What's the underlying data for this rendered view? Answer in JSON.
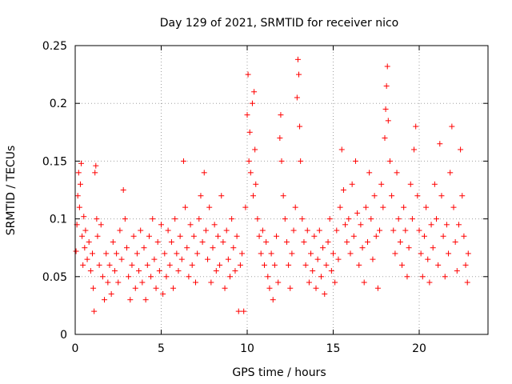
{
  "chart_data": {
    "type": "scatter",
    "title": "Day 129 of 2021, SRMTID for receiver nico",
    "xlabel": "GPS time / hours",
    "ylabel": "SRMTID / TECUs",
    "xlim": [
      0,
      24
    ],
    "ylim": [
      0,
      0.25
    ],
    "xticks": [
      0,
      5,
      10,
      15,
      20
    ],
    "xtick_labels": [
      "0",
      "5",
      "10",
      "15",
      "20"
    ],
    "yticks": [
      0,
      0.05,
      0.1,
      0.15,
      0.2,
      0.25
    ],
    "ytick_labels": [
      "0",
      "0.05",
      "0.1",
      "0.15",
      "0.2",
      "0.25"
    ],
    "grid": true,
    "marker": "plus",
    "color": "#ff0000",
    "series": [
      {
        "name": "SRMTID",
        "points": [
          [
            0.05,
            0.072
          ],
          [
            0.1,
            0.095
          ],
          [
            0.15,
            0.12
          ],
          [
            0.2,
            0.14
          ],
          [
            0.25,
            0.11
          ],
          [
            0.3,
            0.13
          ],
          [
            0.35,
            0.148
          ],
          [
            0.4,
            0.085
          ],
          [
            0.45,
            0.06
          ],
          [
            0.5,
            0.102
          ],
          [
            0.55,
            0.075
          ],
          [
            0.6,
            0.09
          ],
          [
            0.7,
            0.065
          ],
          [
            0.8,
            0.08
          ],
          [
            0.9,
            0.055
          ],
          [
            1.0,
            0.07
          ],
          [
            1.05,
            0.04
          ],
          [
            1.1,
            0.02
          ],
          [
            1.15,
            0.14
          ],
          [
            1.2,
            0.146
          ],
          [
            1.25,
            0.1
          ],
          [
            1.3,
            0.085
          ],
          [
            1.4,
            0.06
          ],
          [
            1.5,
            0.095
          ],
          [
            1.6,
            0.05
          ],
          [
            1.7,
            0.03
          ],
          [
            1.8,
            0.07
          ],
          [
            1.9,
            0.045
          ],
          [
            2.0,
            0.06
          ],
          [
            2.1,
            0.035
          ],
          [
            2.2,
            0.08
          ],
          [
            2.3,
            0.055
          ],
          [
            2.4,
            0.07
          ],
          [
            2.5,
            0.045
          ],
          [
            2.6,
            0.09
          ],
          [
            2.7,
            0.065
          ],
          [
            2.8,
            0.125
          ],
          [
            2.9,
            0.1
          ],
          [
            3.0,
            0.075
          ],
          [
            3.1,
            0.05
          ],
          [
            3.2,
            0.03
          ],
          [
            3.3,
            0.06
          ],
          [
            3.4,
            0.085
          ],
          [
            3.5,
            0.04
          ],
          [
            3.6,
            0.07
          ],
          [
            3.7,
            0.055
          ],
          [
            3.8,
            0.09
          ],
          [
            3.9,
            0.045
          ],
          [
            4.0,
            0.075
          ],
          [
            4.1,
            0.03
          ],
          [
            4.2,
            0.06
          ],
          [
            4.3,
            0.085
          ],
          [
            4.4,
            0.05
          ],
          [
            4.5,
            0.1
          ],
          [
            4.6,
            0.065
          ],
          [
            4.7,
            0.04
          ],
          [
            4.8,
            0.08
          ],
          [
            4.9,
            0.055
          ],
          [
            5.0,
            0.095
          ],
          [
            5.1,
            0.035
          ],
          [
            5.2,
            0.07
          ],
          [
            5.3,
            0.05
          ],
          [
            5.4,
            0.09
          ],
          [
            5.5,
            0.06
          ],
          [
            5.6,
            0.08
          ],
          [
            5.7,
            0.04
          ],
          [
            5.8,
            0.1
          ],
          [
            5.9,
            0.07
          ],
          [
            6.0,
            0.055
          ],
          [
            6.1,
            0.085
          ],
          [
            6.2,
            0.065
          ],
          [
            6.3,
            0.15
          ],
          [
            6.4,
            0.11
          ],
          [
            6.5,
            0.075
          ],
          [
            6.6,
            0.05
          ],
          [
            6.7,
            0.095
          ],
          [
            6.8,
            0.06
          ],
          [
            6.9,
            0.085
          ],
          [
            7.0,
            0.045
          ],
          [
            7.1,
            0.07
          ],
          [
            7.2,
            0.1
          ],
          [
            7.3,
            0.12
          ],
          [
            7.4,
            0.08
          ],
          [
            7.5,
            0.14
          ],
          [
            7.6,
            0.09
          ],
          [
            7.7,
            0.065
          ],
          [
            7.8,
            0.11
          ],
          [
            7.9,
            0.045
          ],
          [
            8.0,
            0.075
          ],
          [
            8.1,
            0.095
          ],
          [
            8.2,
            0.055
          ],
          [
            8.3,
            0.085
          ],
          [
            8.4,
            0.06
          ],
          [
            8.5,
            0.12
          ],
          [
            8.6,
            0.08
          ],
          [
            8.7,
            0.04
          ],
          [
            8.8,
            0.09
          ],
          [
            8.9,
            0.065
          ],
          [
            9.0,
            0.05
          ],
          [
            9.1,
            0.1
          ],
          [
            9.2,
            0.075
          ],
          [
            9.3,
            0.055
          ],
          [
            9.4,
            0.085
          ],
          [
            9.5,
            0.02
          ],
          [
            9.6,
            0.06
          ],
          [
            9.7,
            0.07
          ],
          [
            9.8,
            0.02
          ],
          [
            9.9,
            0.11
          ],
          [
            10.0,
            0.19
          ],
          [
            10.05,
            0.225
          ],
          [
            10.1,
            0.15
          ],
          [
            10.15,
            0.175
          ],
          [
            10.2,
            0.14
          ],
          [
            10.3,
            0.2
          ],
          [
            10.35,
            0.12
          ],
          [
            10.4,
            0.21
          ],
          [
            10.45,
            0.16
          ],
          [
            10.5,
            0.13
          ],
          [
            10.6,
            0.1
          ],
          [
            10.7,
            0.085
          ],
          [
            10.8,
            0.07
          ],
          [
            10.9,
            0.09
          ],
          [
            11.0,
            0.06
          ],
          [
            11.1,
            0.08
          ],
          [
            11.2,
            0.05
          ],
          [
            11.3,
            0.04
          ],
          [
            11.4,
            0.07
          ],
          [
            11.5,
            0.03
          ],
          [
            11.6,
            0.06
          ],
          [
            11.7,
            0.085
          ],
          [
            11.8,
            0.045
          ],
          [
            11.9,
            0.17
          ],
          [
            11.95,
            0.19
          ],
          [
            12.0,
            0.15
          ],
          [
            12.1,
            0.12
          ],
          [
            12.2,
            0.1
          ],
          [
            12.3,
            0.08
          ],
          [
            12.4,
            0.06
          ],
          [
            12.5,
            0.04
          ],
          [
            12.6,
            0.07
          ],
          [
            12.7,
            0.09
          ],
          [
            12.8,
            0.11
          ],
          [
            12.9,
            0.205
          ],
          [
            12.95,
            0.238
          ],
          [
            13.0,
            0.225
          ],
          [
            13.05,
            0.18
          ],
          [
            13.1,
            0.15
          ],
          [
            13.2,
            0.1
          ],
          [
            13.3,
            0.08
          ],
          [
            13.4,
            0.06
          ],
          [
            13.5,
            0.09
          ],
          [
            13.6,
            0.045
          ],
          [
            13.7,
            0.07
          ],
          [
            13.8,
            0.055
          ],
          [
            13.9,
            0.085
          ],
          [
            14.0,
            0.04
          ],
          [
            14.1,
            0.065
          ],
          [
            14.2,
            0.09
          ],
          [
            14.3,
            0.05
          ],
          [
            14.4,
            0.075
          ],
          [
            14.5,
            0.035
          ],
          [
            14.6,
            0.06
          ],
          [
            14.7,
            0.08
          ],
          [
            14.8,
            0.1
          ],
          [
            14.9,
            0.055
          ],
          [
            15.0,
            0.07
          ],
          [
            15.1,
            0.045
          ],
          [
            15.2,
            0.09
          ],
          [
            15.3,
            0.065
          ],
          [
            15.4,
            0.11
          ],
          [
            15.5,
            0.16
          ],
          [
            15.6,
            0.125
          ],
          [
            15.7,
            0.095
          ],
          [
            15.8,
            0.08
          ],
          [
            15.9,
            0.1
          ],
          [
            16.0,
            0.07
          ],
          [
            16.1,
            0.13
          ],
          [
            16.2,
            0.085
          ],
          [
            16.3,
            0.15
          ],
          [
            16.4,
            0.105
          ],
          [
            16.5,
            0.06
          ],
          [
            16.6,
            0.095
          ],
          [
            16.7,
            0.075
          ],
          [
            16.8,
            0.045
          ],
          [
            16.9,
            0.11
          ],
          [
            17.0,
            0.08
          ],
          [
            17.1,
            0.14
          ],
          [
            17.2,
            0.1
          ],
          [
            17.3,
            0.065
          ],
          [
            17.4,
            0.12
          ],
          [
            17.5,
            0.085
          ],
          [
            17.6,
            0.04
          ],
          [
            17.7,
            0.09
          ],
          [
            17.8,
            0.13
          ],
          [
            17.9,
            0.11
          ],
          [
            18.0,
            0.17
          ],
          [
            18.05,
            0.195
          ],
          [
            18.1,
            0.215
          ],
          [
            18.15,
            0.232
          ],
          [
            18.2,
            0.185
          ],
          [
            18.3,
            0.15
          ],
          [
            18.4,
            0.12
          ],
          [
            18.5,
            0.09
          ],
          [
            18.6,
            0.07
          ],
          [
            18.7,
            0.14
          ],
          [
            18.8,
            0.1
          ],
          [
            18.9,
            0.08
          ],
          [
            19.0,
            0.06
          ],
          [
            19.1,
            0.11
          ],
          [
            19.2,
            0.09
          ],
          [
            19.3,
            0.05
          ],
          [
            19.4,
            0.075
          ],
          [
            19.5,
            0.13
          ],
          [
            19.6,
            0.1
          ],
          [
            19.7,
            0.16
          ],
          [
            19.8,
            0.18
          ],
          [
            19.9,
            0.12
          ],
          [
            20.0,
            0.09
          ],
          [
            20.1,
            0.07
          ],
          [
            20.2,
            0.05
          ],
          [
            20.3,
            0.085
          ],
          [
            20.4,
            0.11
          ],
          [
            20.5,
            0.065
          ],
          [
            20.6,
            0.045
          ],
          [
            20.7,
            0.095
          ],
          [
            20.8,
            0.075
          ],
          [
            20.9,
            0.13
          ],
          [
            21.0,
            0.1
          ],
          [
            21.1,
            0.06
          ],
          [
            21.2,
            0.165
          ],
          [
            21.3,
            0.12
          ],
          [
            21.4,
            0.085
          ],
          [
            21.5,
            0.05
          ],
          [
            21.6,
            0.095
          ],
          [
            21.7,
            0.07
          ],
          [
            21.8,
            0.14
          ],
          [
            21.9,
            0.18
          ],
          [
            22.0,
            0.11
          ],
          [
            22.1,
            0.08
          ],
          [
            22.2,
            0.055
          ],
          [
            22.3,
            0.095
          ],
          [
            22.4,
            0.16
          ],
          [
            22.5,
            0.12
          ],
          [
            22.6,
            0.085
          ],
          [
            22.7,
            0.06
          ],
          [
            22.8,
            0.045
          ],
          [
            22.85,
            0.07
          ]
        ]
      }
    ]
  }
}
